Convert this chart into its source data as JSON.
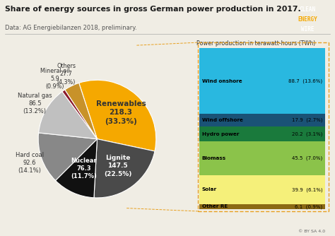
{
  "title": "Share of energy sources in gross German power production in 2017.",
  "subtitle": "Data: AG Energiebilanzen 2018, preliminary.",
  "pie_labels": [
    "Renewables",
    "Lignite",
    "Nuclear",
    "Hard coal",
    "Natural gas",
    "Mineral oil",
    "Others"
  ],
  "pie_values": [
    218.3,
    147.5,
    76.3,
    92.6,
    86.5,
    5.9,
    27.7
  ],
  "pie_percentages": [
    "33.3%",
    "22.5%",
    "11.7%",
    "14.1%",
    "13.2%",
    "0.9%",
    "4.3%"
  ],
  "pie_colors": [
    "#F5A800",
    "#4A4A4A",
    "#111111",
    "#888888",
    "#C0C0C0",
    "#8B1A2B",
    "#C8922A"
  ],
  "bar_labels": [
    "Wind onshore",
    "Wind offshore",
    "Hydro power",
    "Biomass",
    "Solar",
    "Other RE"
  ],
  "bar_values": [
    88.7,
    17.9,
    20.2,
    45.5,
    39.9,
    6.1
  ],
  "bar_percentages": [
    "13.6%",
    "2.7%",
    "3.1%",
    "7.0%",
    "6.1%",
    "0.9%"
  ],
  "bar_colors": [
    "#29B8E0",
    "#1A5276",
    "#1A7A3C",
    "#8BC34A",
    "#F5F07A",
    "#8B6914"
  ],
  "bar_title": "Power production in terawatt-hours (TWh)",
  "background_color": "#F0EDE4",
  "logo_bg": "#1B3A5C",
  "logo_energy_color": "#F5A800"
}
